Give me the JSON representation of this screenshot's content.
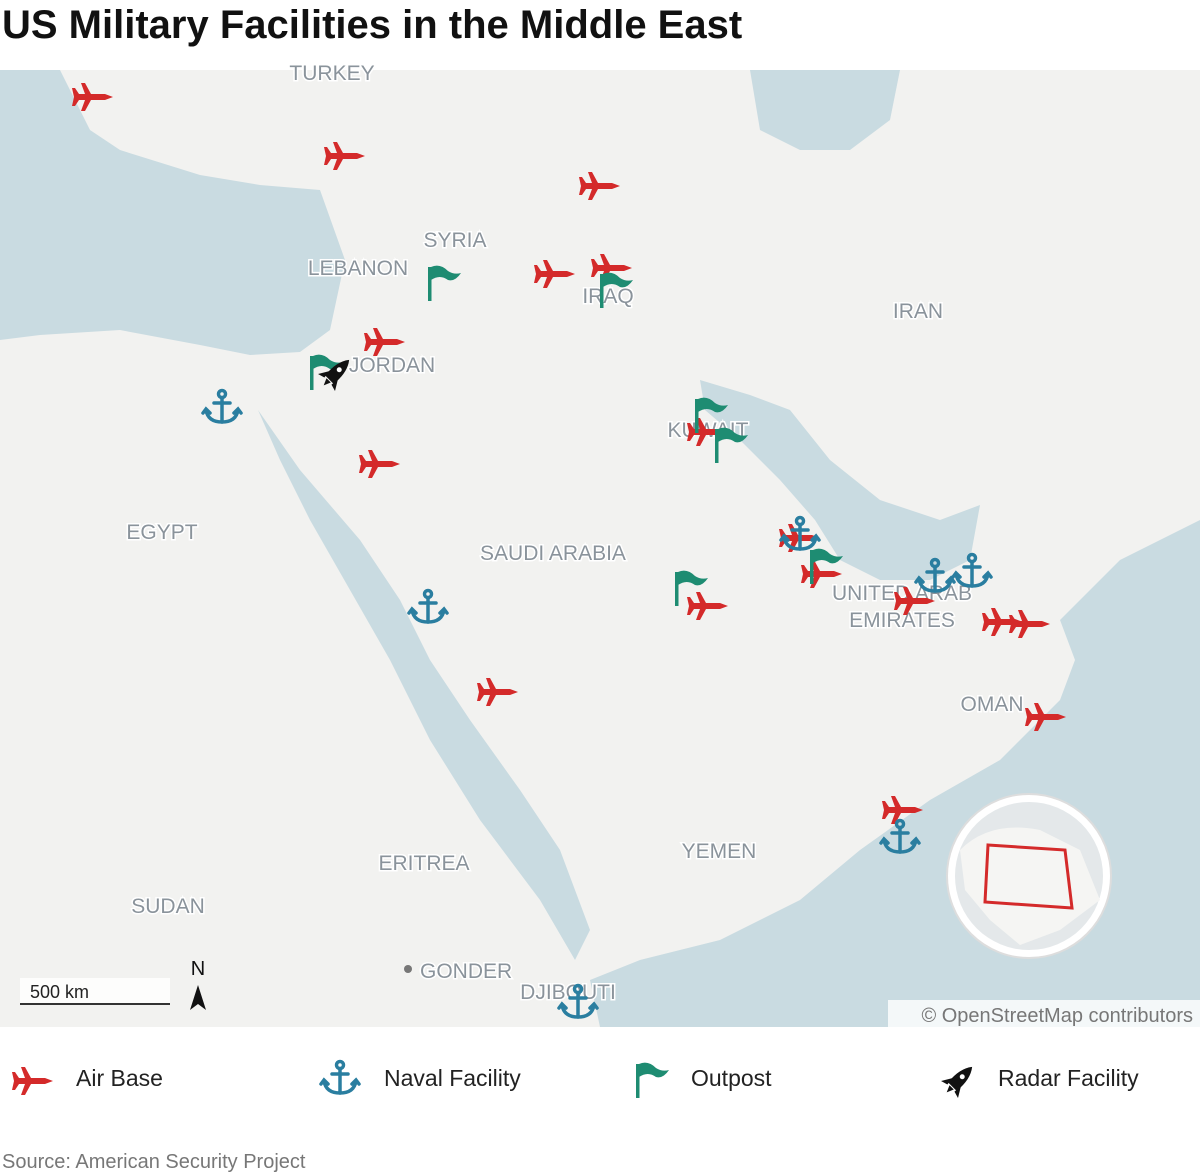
{
  "header": {
    "title": "US Military Facilities in the Middle East"
  },
  "map": {
    "labels": [
      "TURKEY",
      "SYRIA",
      "LEBANON",
      "IRAQ",
      "IRAN",
      "JORDAN",
      "KUWAIT",
      "EGYPT",
      "SAUDI ARABIA",
      "UNITED ARAB",
      "EMIRATES",
      "OMAN",
      "YEMEN",
      "ERITREA",
      "SUDAN",
      "GONDER",
      "DJIBOUTI"
    ],
    "scale": "500 km",
    "north": "N",
    "attribution": "© OpenStreetMap contributors"
  },
  "legend": [
    "Air Base",
    "Naval Facility",
    "Outpost",
    "Radar Facility"
  ],
  "footer": {
    "source": "Source: American Security Project"
  }
}
